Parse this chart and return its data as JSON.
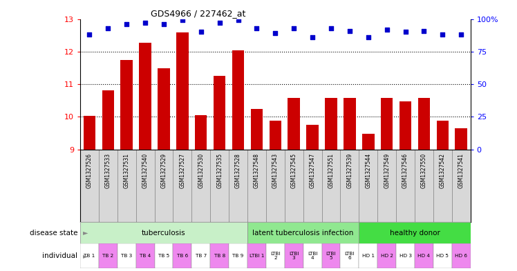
{
  "title": "GDS4966 / 227462_at",
  "samples": [
    "GSM1327526",
    "GSM1327533",
    "GSM1327531",
    "GSM1327540",
    "GSM1327529",
    "GSM1327527",
    "GSM1327530",
    "GSM1327535",
    "GSM1327528",
    "GSM1327548",
    "GSM1327543",
    "GSM1327545",
    "GSM1327547",
    "GSM1327551",
    "GSM1327539",
    "GSM1327544",
    "GSM1327549",
    "GSM1327546",
    "GSM1327550",
    "GSM1327542",
    "GSM1327541"
  ],
  "transformed_count": [
    10.03,
    10.82,
    11.75,
    12.28,
    11.48,
    12.58,
    10.05,
    11.25,
    12.03,
    10.25,
    9.88,
    10.58,
    9.75,
    10.58,
    10.58,
    9.48,
    10.58,
    10.48,
    10.58,
    9.88,
    9.65
  ],
  "percentile_rank": [
    88,
    93,
    96,
    97,
    96,
    99,
    90,
    97,
    99,
    93,
    89,
    93,
    86,
    93,
    91,
    86,
    92,
    90,
    91,
    88,
    88
  ],
  "disease_groups": [
    {
      "label": "tuberculosis",
      "start": 0,
      "end": 9,
      "color": "#c8f0c8"
    },
    {
      "label": "latent tuberculosis infection",
      "start": 9,
      "end": 15,
      "color": "#90e890"
    },
    {
      "label": "healthy donor",
      "start": 15,
      "end": 21,
      "color": "#44dd44"
    }
  ],
  "individual_labels": [
    "TB 1",
    "TB 2",
    "TB 3",
    "TB 4",
    "TB 5",
    "TB 6",
    "TB 7",
    "TB 8",
    "TB 9",
    "LTBI 1",
    "LTBI\n2",
    "LTBI\n3",
    "LTBI\n4",
    "LTBI\n5",
    "LTBI\n6",
    "HD 1",
    "HD 2",
    "HD 3",
    "HD 4",
    "HD 5",
    "HD 6"
  ],
  "individual_colors": [
    "#ffffff",
    "#ee88ee",
    "#ffffff",
    "#ee88ee",
    "#ffffff",
    "#ee88ee",
    "#ffffff",
    "#ee88ee",
    "#ffffff",
    "#ee88ee",
    "#ffffff",
    "#ee88ee",
    "#ffffff",
    "#ee88ee",
    "#ffffff",
    "#ffffff",
    "#ee88ee",
    "#ffffff",
    "#ee88ee",
    "#ffffff",
    "#ee88ee"
  ],
  "gsm_box_color": "#d8d8d8",
  "bar_color": "#cc0000",
  "dot_color": "#0000cc",
  "ylim_left": [
    9,
    13
  ],
  "ylim_right": [
    0,
    100
  ],
  "yticks_left": [
    9,
    10,
    11,
    12,
    13
  ],
  "yticks_right": [
    0,
    25,
    50,
    75,
    100
  ],
  "yticklabels_right": [
    "0",
    "25",
    "50",
    "75",
    "100%"
  ]
}
